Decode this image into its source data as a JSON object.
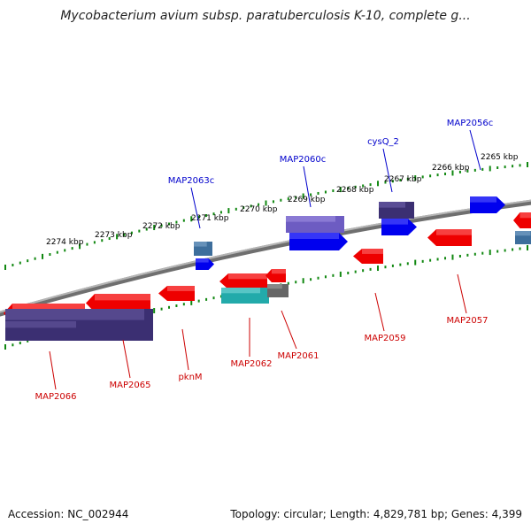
{
  "title": "Mycobacterium avium subsp. paratuberculosis K-10, complete g...",
  "footer": {
    "accession": "Accession: NC_002944",
    "summary": "Topology: circular; Length: 4,829,781 bp; Genes: 4,399"
  },
  "colors": {
    "backbone": "#8a8a8a",
    "forward_label": "#0000cc",
    "reverse_label": "#cc0000",
    "tick": "#118811",
    "kbp_label": "#000000"
  },
  "ruler": {
    "unit": "kbp",
    "major_positions": [
      2274,
      2273,
      2272,
      2271,
      2270,
      2269,
      2268,
      2267,
      2266,
      2265
    ],
    "labels": [
      "2274 kbp",
      "2273 kbp",
      "2272 kbp",
      "2271 kbp",
      "2270 kbp",
      "2269 kbp",
      "2268 kbp",
      "2267 kbp",
      "2266 kbp",
      "2265 kbp"
    ]
  },
  "forward_genes": [
    {
      "name": "MAP2063c",
      "color": "#0000ee"
    },
    {
      "name": "MAP2060c",
      "color": "#0000ee"
    },
    {
      "name": "cysQ_2",
      "color": "#0000ee"
    },
    {
      "name": "MAP2056c",
      "color": "#0000ee"
    }
  ],
  "reverse_genes": [
    {
      "name": "MAP2066",
      "color": "#ee0000"
    },
    {
      "name": "MAP2065",
      "color": "#ee0000"
    },
    {
      "name": "pknM",
      "color": "#ee0000"
    },
    {
      "name": "MAP2062",
      "color": "#ee0000"
    },
    {
      "name": "MAP2061",
      "color": "#ee0000"
    },
    {
      "name": "MAP2059",
      "color": "#ee0000"
    },
    {
      "name": "MAP2057",
      "color": "#ee0000"
    }
  ]
}
